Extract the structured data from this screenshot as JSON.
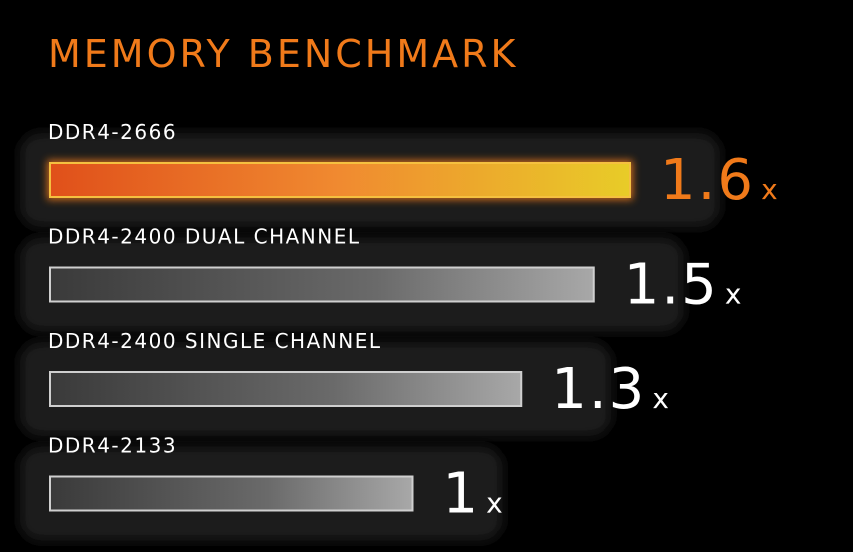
{
  "chart_data": {
    "type": "bar",
    "orientation": "horizontal",
    "title": "MEMORY BENCHMARK",
    "categories": [
      "DDR4-2666",
      "DDR4-2400 DUAL CHANNEL",
      "DDR4-2400 SINGLE CHANNEL",
      "DDR4-2133"
    ],
    "values": [
      1.6,
      1.5,
      1.3,
      1
    ],
    "value_labels": [
      "1.6x",
      "1.5x",
      "1.3x",
      "1x"
    ],
    "colors": [
      "#f07a1a",
      "#9a9a9a",
      "#9a9a9a",
      "#9a9a9a"
    ],
    "label_colors": [
      "#f07a1a",
      "#ffffff",
      "#ffffff",
      "#ffffff"
    ]
  }
}
